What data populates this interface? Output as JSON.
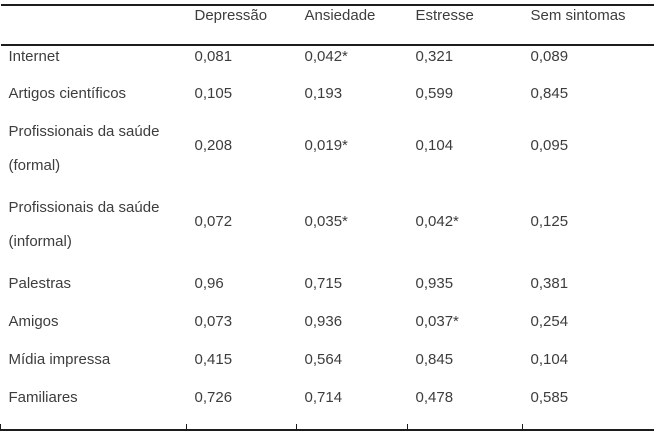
{
  "colors": {
    "text": "#3d3d3d",
    "border": "#1c1c1c",
    "background": "#ffffff"
  },
  "table": {
    "columns": [
      "",
      "Depressão",
      "Ansiedade",
      "Estresse",
      "Sem sintomas"
    ],
    "rows": [
      {
        "label": [
          "Internet"
        ],
        "values": [
          "0,081",
          "0,042*",
          "0,321",
          "0,089"
        ]
      },
      {
        "label": [
          "Artigos científicos"
        ],
        "values": [
          "0,105",
          "0,193",
          "0,599",
          "0,845"
        ]
      },
      {
        "label": [
          "Profissionais da saúde",
          "(formal)"
        ],
        "values": [
          "0,208",
          "0,019*",
          "0,104",
          "0,095"
        ]
      },
      {
        "label": [
          "Profissionais da saúde",
          "(informal)"
        ],
        "values": [
          "0,072",
          "0,035*",
          "0,042*",
          "0,125"
        ]
      },
      {
        "label": [
          "Palestras"
        ],
        "values": [
          "0,96",
          "0,715",
          "0,935",
          "0,381"
        ]
      },
      {
        "label": [
          "Amigos"
        ],
        "values": [
          "0,073",
          "0,936",
          "0,037*",
          "0,254"
        ]
      },
      {
        "label": [
          "Mídia impressa"
        ],
        "values": [
          "0,415",
          "0,564",
          "0,845",
          "0,104"
        ]
      },
      {
        "label": [
          "Familiares"
        ],
        "values": [
          "0,726",
          "0,714",
          "0,478",
          "0,585"
        ]
      }
    ]
  },
  "chart_data": {
    "type": "table",
    "columns": [
      "",
      "Depressão",
      "Ansiedade",
      "Estresse",
      "Sem sintomas"
    ],
    "rows": [
      [
        "Internet",
        "0,081",
        "0,042*",
        "0,321",
        "0,089"
      ],
      [
        "Artigos científicos",
        "0,105",
        "0,193",
        "0,599",
        "0,845"
      ],
      [
        "Profissionais da saúde (formal)",
        "0,208",
        "0,019*",
        "0,104",
        "0,095"
      ],
      [
        "Profissionais da saúde (informal)",
        "0,072",
        "0,035*",
        "0,042*",
        "0,125"
      ],
      [
        "Palestras",
        "0,96",
        "0,715",
        "0,935",
        "0,381"
      ],
      [
        "Amigos",
        "0,073",
        "0,936",
        "0,037*",
        "0,254"
      ],
      [
        "Mídia impressa",
        "0,415",
        "0,564",
        "0,845",
        "0,104"
      ],
      [
        "Familiares",
        "0,726",
        "0,714",
        "0,478",
        "0,585"
      ]
    ]
  }
}
